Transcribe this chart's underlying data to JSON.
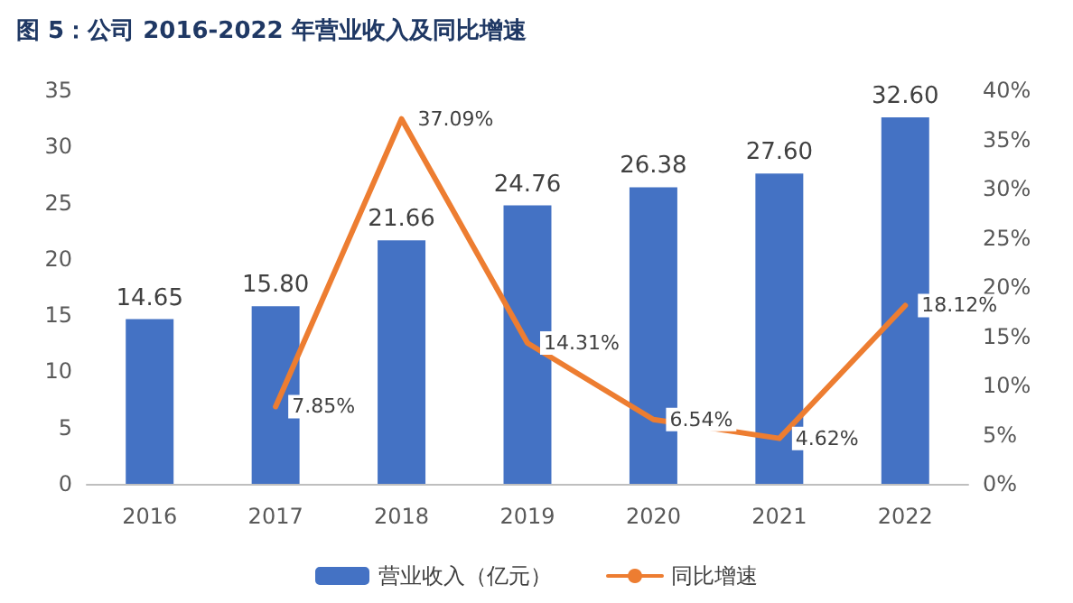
{
  "chart_data": {
    "type": "bar",
    "title": "图 5：公司 2016-2022 年营业收入及同比增速",
    "categories": [
      "2016",
      "2017",
      "2018",
      "2019",
      "2020",
      "2021",
      "2022"
    ],
    "series": [
      {
        "name": "营业收入（亿元）",
        "color": "#4472c4",
        "values": [
          14.65,
          15.8,
          21.66,
          24.76,
          26.38,
          27.6,
          32.6
        ],
        "value_labels": [
          "14.65",
          "15.80",
          "21.66",
          "24.76",
          "26.38",
          "27.60",
          "32.60"
        ]
      },
      {
        "name": "同比增速",
        "type": "line",
        "axis": "y2",
        "color": "#ed7d31",
        "values": [
          null,
          7.85,
          37.09,
          14.31,
          6.54,
          4.62,
          18.12
        ],
        "value_labels": [
          null,
          "7.85%",
          "37.09%",
          "14.31%",
          "6.54%",
          "4.62%",
          "18.12%"
        ]
      }
    ],
    "ylim": [
      0,
      35
    ],
    "yticks": [
      0,
      5,
      10,
      15,
      20,
      25,
      30,
      35
    ],
    "y2lim": [
      0,
      40
    ],
    "y2ticks": [
      {
        "value": 0,
        "label": "0%"
      },
      {
        "value": 5,
        "label": "5%"
      },
      {
        "value": 10,
        "label": "10%"
      },
      {
        "value": 15,
        "label": "15%"
      },
      {
        "value": 20,
        "label": "20%"
      },
      {
        "value": 25,
        "label": "25%"
      },
      {
        "value": 30,
        "label": "30%"
      },
      {
        "value": 35,
        "label": "35%"
      },
      {
        "value": 40,
        "label": "40%"
      }
    ],
    "grid": false,
    "legend": "bottom",
    "marker": "none",
    "line_style": "solid"
  }
}
